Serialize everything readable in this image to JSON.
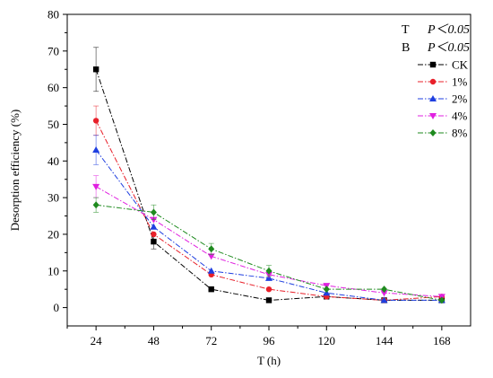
{
  "chart_data": {
    "type": "line",
    "title": "",
    "xlabel": "T (h)",
    "ylabel": "Desorption efficiency (%)",
    "x": [
      24,
      48,
      72,
      96,
      120,
      144,
      168
    ],
    "xlim": [
      12,
      180
    ],
    "ylim": [
      -5,
      80
    ],
    "yticks": [
      0,
      10,
      20,
      30,
      40,
      50,
      60,
      70,
      80
    ],
    "grid": false,
    "legend_position": "top-right",
    "annotations": [
      {
        "label": "T",
        "text": "P＜0.05"
      },
      {
        "label": "B",
        "text": "P＜0.05"
      }
    ],
    "series": [
      {
        "name": "CK",
        "color": "#000000",
        "marker": "square",
        "values": [
          65,
          18,
          5,
          2,
          3,
          2,
          2
        ],
        "errors": [
          6,
          2,
          0,
          0,
          0,
          0,
          0
        ]
      },
      {
        "name": "1%",
        "color": "#e8202a",
        "marker": "circle",
        "values": [
          51,
          20,
          9,
          5,
          3,
          2,
          3
        ],
        "errors": [
          4,
          0,
          0,
          0,
          0,
          0,
          0
        ]
      },
      {
        "name": "2%",
        "color": "#1f3fe0",
        "marker": "triangle-up",
        "values": [
          43,
          22,
          10,
          8,
          4,
          2,
          2
        ],
        "errors": [
          4,
          0,
          0,
          0,
          0,
          0,
          0
        ]
      },
      {
        "name": "4%",
        "color": "#e020e0",
        "marker": "triangle-down",
        "values": [
          33,
          24,
          14,
          9,
          6,
          4,
          3
        ],
        "errors": [
          3,
          0,
          0,
          0,
          0,
          0,
          0
        ]
      },
      {
        "name": "8%",
        "color": "#1e8a1e",
        "marker": "diamond",
        "values": [
          28,
          26,
          16,
          10,
          5,
          5,
          2
        ],
        "errors": [
          2,
          2,
          1.5,
          1.5,
          0,
          0,
          0
        ]
      }
    ]
  }
}
